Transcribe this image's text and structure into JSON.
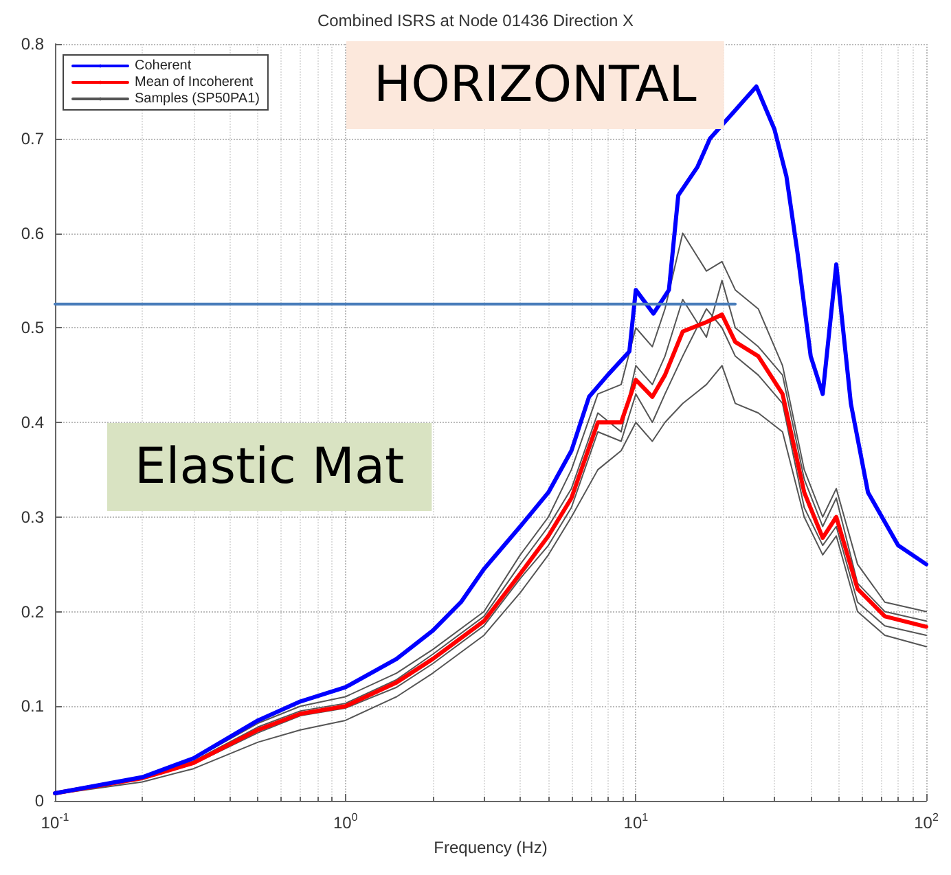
{
  "chart_data": {
    "type": "line",
    "title": "Combined ISRS at Node 01436 Direction X",
    "xlabel": "Frequency (Hz)",
    "log": "x",
    "xlim": [
      0.1,
      100
    ],
    "xticks": [
      {
        "value": 0.1,
        "label": "10$^{-1}$"
      },
      {
        "value": 1,
        "label": "10$^{0}$"
      },
      {
        "value": 10,
        "label": "10$^{1}$"
      },
      {
        "value": 100,
        "label": "10$^{2}$"
      }
    ],
    "ylim": [
      0,
      0.8
    ],
    "yticks": [
      0,
      0.1,
      0.2,
      0.3,
      0.4,
      0.5,
      0.6,
      0.7,
      0.8
    ],
    "grid": true,
    "legend": "top left",
    "marker": "none",
    "line_style": "solid",
    "annotations": [
      "HORIZONTAL",
      "Elastic Mat"
    ],
    "series": [
      {
        "name": "Samples (SP50PA1)",
        "color": "#555555",
        "x": [
          0.1,
          0.2,
          0.3,
          0.5,
          0.7,
          1,
          1.5,
          2,
          3,
          4,
          5,
          6,
          7.4,
          8.9,
          10,
          11.4,
          12.6,
          14.5,
          17.5,
          19.8,
          22,
          26.4,
          32,
          38,
          44,
          49,
          58,
          72,
          100
        ],
        "values": [
          0.009,
          0.026,
          0.044,
          0.082,
          0.1,
          0.11,
          0.135,
          0.16,
          0.2,
          0.26,
          0.3,
          0.35,
          0.43,
          0.44,
          0.5,
          0.48,
          0.52,
          0.6,
          0.56,
          0.57,
          0.54,
          0.52,
          0.46,
          0.35,
          0.3,
          0.33,
          0.25,
          0.21,
          0.2
        ]
      },
      {
        "color": "#555555",
        "x": [
          0.1,
          0.2,
          0.3,
          0.5,
          0.7,
          1,
          1.5,
          2,
          3,
          4,
          5,
          6,
          7.4,
          8.9,
          10,
          11.4,
          12.6,
          14.5,
          17.5,
          19.8,
          22,
          26.4,
          32,
          38,
          44,
          49,
          58,
          72,
          100
        ],
        "values": [
          0.007,
          0.02,
          0.034,
          0.062,
          0.075,
          0.085,
          0.11,
          0.135,
          0.175,
          0.22,
          0.26,
          0.3,
          0.35,
          0.37,
          0.4,
          0.38,
          0.4,
          0.42,
          0.44,
          0.46,
          0.42,
          0.41,
          0.39,
          0.3,
          0.26,
          0.28,
          0.2,
          0.175,
          0.163
        ]
      },
      {
        "color": "#555555",
        "x": [
          0.1,
          0.2,
          0.3,
          0.5,
          0.7,
          1,
          1.5,
          2,
          3,
          4,
          5,
          6,
          7.4,
          8.9,
          10,
          11.4,
          12.6,
          14.5,
          17.5,
          19.8,
          22,
          26.4,
          32,
          38,
          44,
          49,
          58,
          72,
          100
        ],
        "values": [
          0.008,
          0.025,
          0.042,
          0.078,
          0.095,
          0.103,
          0.128,
          0.155,
          0.195,
          0.25,
          0.29,
          0.33,
          0.41,
          0.39,
          0.46,
          0.44,
          0.47,
          0.53,
          0.49,
          0.55,
          0.5,
          0.48,
          0.45,
          0.34,
          0.29,
          0.32,
          0.23,
          0.2,
          0.19
        ]
      },
      {
        "color": "#555555",
        "x": [
          0.1,
          0.2,
          0.3,
          0.5,
          0.7,
          1,
          1.5,
          2,
          3,
          4,
          5,
          6,
          7.4,
          8.9,
          10,
          11.4,
          12.6,
          14.5,
          17.5,
          19.8,
          22,
          26.4,
          32,
          38,
          44,
          49,
          58,
          72,
          100
        ],
        "values": [
          0.008,
          0.023,
          0.039,
          0.072,
          0.09,
          0.098,
          0.12,
          0.145,
          0.185,
          0.235,
          0.27,
          0.31,
          0.39,
          0.38,
          0.43,
          0.4,
          0.43,
          0.47,
          0.52,
          0.5,
          0.47,
          0.45,
          0.42,
          0.31,
          0.27,
          0.29,
          0.21,
          0.185,
          0.175
        ]
      },
      {
        "name": "Mean of Incoherent",
        "color": "#ff0000",
        "x": [
          0.1,
          0.2,
          0.3,
          0.5,
          0.7,
          1,
          1.5,
          2,
          3,
          4,
          5,
          6,
          7.4,
          8.9,
          10,
          11.4,
          12.6,
          14.5,
          17.5,
          19.8,
          22,
          26.4,
          32,
          38,
          44,
          49,
          58,
          72,
          100
        ],
        "values": [
          0.008,
          0.024,
          0.04,
          0.075,
          0.092,
          0.1,
          0.125,
          0.15,
          0.19,
          0.24,
          0.28,
          0.32,
          0.4,
          0.4,
          0.445,
          0.427,
          0.45,
          0.496,
          0.506,
          0.514,
          0.485,
          0.47,
          0.43,
          0.326,
          0.278,
          0.3,
          0.224,
          0.195,
          0.184
        ]
      },
      {
        "name": "Coherent",
        "color": "#0000ff",
        "x": [
          0.1,
          0.2,
          0.3,
          0.5,
          0.7,
          1,
          1.5,
          2,
          2.5,
          3,
          4,
          5,
          6,
          6.9,
          8,
          9.5,
          10,
          11.5,
          13,
          14,
          16.3,
          18,
          22,
          23.5,
          26,
          30,
          33,
          36,
          40,
          44,
          49,
          55,
          63,
          80,
          100
        ],
        "values": [
          0.008,
          0.025,
          0.045,
          0.085,
          0.105,
          0.12,
          0.15,
          0.18,
          0.21,
          0.245,
          0.29,
          0.326,
          0.37,
          0.427,
          0.45,
          0.475,
          0.54,
          0.515,
          0.54,
          0.64,
          0.67,
          0.7,
          0.73,
          0.74,
          0.755,
          0.71,
          0.66,
          0.58,
          0.47,
          0.43,
          0.567,
          0.42,
          0.326,
          0.27,
          0.25
        ]
      },
      {
        "color": "#4a7ebb",
        "x": [
          0.1,
          22
        ],
        "values": [
          0.525,
          0.525
        ]
      }
    ]
  }
}
